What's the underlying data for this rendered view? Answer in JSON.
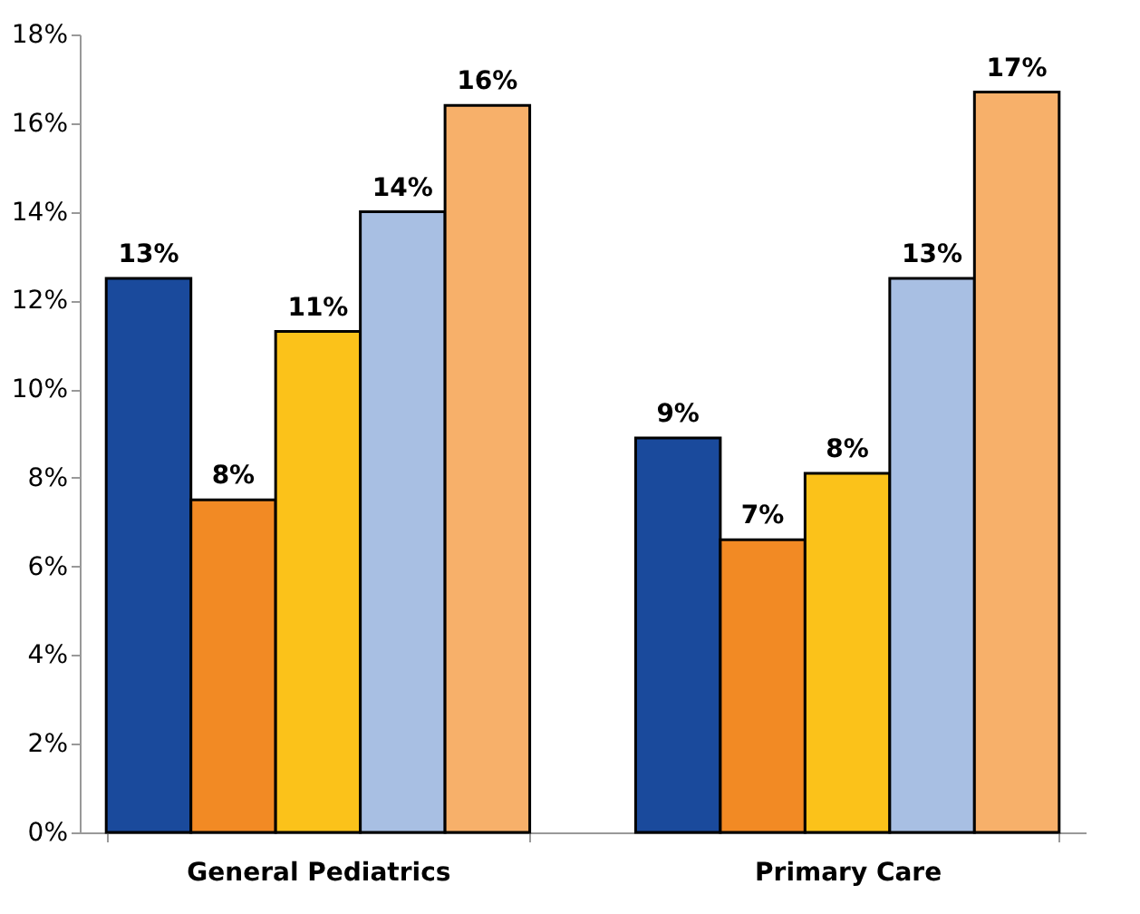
{
  "chart_data": {
    "type": "bar",
    "categories": [
      "General Pediatrics",
      "Primary Care"
    ],
    "series": [
      {
        "color": "#1a4a9c",
        "values": [
          12.5,
          8.9
        ],
        "value_labels": [
          "13%",
          "9%"
        ]
      },
      {
        "color": "#f28a24",
        "values": [
          7.5,
          6.6
        ],
        "value_labels": [
          "8%",
          "7%"
        ]
      },
      {
        "color": "#fbc21a",
        "values": [
          11.3,
          8.1
        ],
        "value_labels": [
          "11%",
          "8%"
        ]
      },
      {
        "color": "#a8bfe3",
        "values": [
          14.0,
          12.5
        ],
        "value_labels": [
          "14%",
          "13%"
        ]
      },
      {
        "color": "#f7b06a",
        "values": [
          16.4,
          16.7
        ],
        "value_labels": [
          "16%",
          "17%"
        ]
      }
    ],
    "ylim": [
      0,
      18
    ],
    "yticks": [
      {
        "value": 0,
        "label": "0%"
      },
      {
        "value": 2,
        "label": "2%"
      },
      {
        "value": 4,
        "label": "4%"
      },
      {
        "value": 6,
        "label": "6%"
      },
      {
        "value": 8,
        "label": "8%"
      },
      {
        "value": 10,
        "label": "10%"
      },
      {
        "value": 12,
        "label": "12%"
      },
      {
        "value": 14,
        "label": "14%"
      },
      {
        "value": 16,
        "label": "16%"
      },
      {
        "value": 18,
        "label": "18%"
      }
    ],
    "grid": false,
    "legend": false
  }
}
